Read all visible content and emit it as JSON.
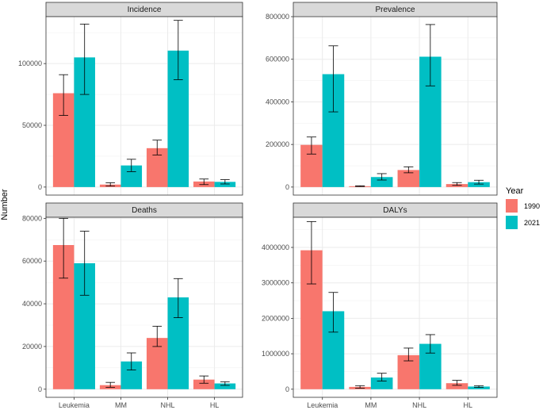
{
  "chart_data": {
    "type": "bar",
    "ylabel": "Number",
    "legend": {
      "title": "Year",
      "position": "right",
      "entries": [
        "1990",
        "2021"
      ]
    },
    "colors": {
      "1990": "#F8766D",
      "2021": "#00BFC4"
    },
    "categories": [
      "Leukemia",
      "MM",
      "NHL",
      "HL"
    ],
    "panels": [
      {
        "title": "Incidence",
        "ylim": [
          0,
          138000
        ],
        "yticks": [
          0,
          50000,
          100000
        ],
        "series": [
          {
            "name": "1990",
            "values": [
              76000,
              2000,
              31500,
              4500
            ],
            "lower": [
              58000,
              800,
              26000,
              2000
            ],
            "upper": [
              91000,
              3500,
              38000,
              6500
            ]
          },
          {
            "name": "2021",
            "values": [
              105000,
              17500,
              110500,
              4200
            ],
            "lower": [
              75000,
              12500,
              87000,
              2500
            ],
            "upper": [
              132000,
              22500,
              135000,
              6000
            ]
          }
        ]
      },
      {
        "title": "Prevalence",
        "ylim": [
          0,
          800000
        ],
        "yticks": [
          0,
          200000,
          400000,
          600000,
          800000
        ],
        "series": [
          {
            "name": "1990",
            "values": [
              198000,
              4000,
              80000,
              14000
            ],
            "lower": [
              155000,
              2500,
              67000,
              8000
            ],
            "upper": [
              235000,
              6000,
              95000,
              21000
            ]
          },
          {
            "name": "2021",
            "values": [
              530000,
              47000,
              612000,
              23000
            ],
            "lower": [
              353000,
              33000,
              475000,
              14000
            ],
            "upper": [
              663000,
              63000,
              763000,
              32000
            ]
          }
        ]
      },
      {
        "title": "Deaths",
        "ylim": [
          0,
          80500
        ],
        "yticks": [
          0,
          20000,
          40000,
          60000,
          80000
        ],
        "series": [
          {
            "name": "1990",
            "values": [
              67500,
              1900,
              24000,
              4500
            ],
            "lower": [
              52000,
              900,
              20000,
              2800
            ],
            "upper": [
              80000,
              3200,
              29500,
              6200
            ]
          },
          {
            "name": "2021",
            "values": [
              59000,
              13000,
              43000,
              2700
            ],
            "lower": [
              44000,
              9000,
              33500,
              1800
            ],
            "upper": [
              74000,
              17000,
              51800,
              3500
            ]
          }
        ]
      },
      {
        "title": "DALYs",
        "ylim": [
          0,
          4850000
        ],
        "yticks": [
          0,
          1000000,
          2000000,
          3000000,
          4000000
        ],
        "series": [
          {
            "name": "1990",
            "values": [
              3920000,
              65000,
              960000,
              170000
            ],
            "lower": [
              2970000,
              30000,
              800000,
              110000
            ],
            "upper": [
              4730000,
              100000,
              1160000,
              250000
            ]
          },
          {
            "name": "2021",
            "values": [
              2200000,
              330000,
              1280000,
              75000
            ],
            "lower": [
              1610000,
              230000,
              1020000,
              50000
            ],
            "upper": [
              2730000,
              450000,
              1540000,
              100000
            ]
          }
        ]
      }
    ]
  }
}
